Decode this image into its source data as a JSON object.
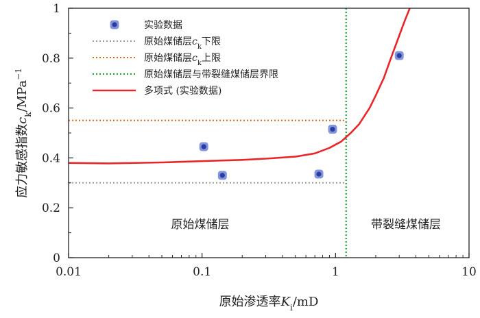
{
  "chart_data": {
    "type": "scatter",
    "x_scale": "log",
    "xlim": [
      0.01,
      10
    ],
    "ylim": [
      0,
      1
    ],
    "x_ticks": [
      {
        "value": 0.01,
        "label": "0.01"
      },
      {
        "value": 0.1,
        "label": "0.1"
      },
      {
        "value": 1,
        "label": "1"
      },
      {
        "value": 10,
        "label": "10"
      }
    ],
    "y_ticks": [
      {
        "value": 0,
        "label": "0"
      },
      {
        "value": 0.2,
        "label": "0.2"
      },
      {
        "value": 0.4,
        "label": "0.4"
      },
      {
        "value": 0.6,
        "label": "0.6"
      },
      {
        "value": 0.8,
        "label": "0.8"
      },
      {
        "value": 1,
        "label": "1"
      }
    ],
    "xlabel": {
      "prefix": "原始渗透率",
      "symbol": "K",
      "subscript": "i",
      "suffix": "/mD"
    },
    "ylabel": {
      "prefix": "应力敏感指数",
      "symbol": "c",
      "subscript": "k",
      "suffix": "/MPa",
      "superscript": "−1"
    },
    "experimental_points": {
      "name": "实验数据",
      "x": [
        0.103,
        0.142,
        0.75,
        0.95,
        3.0
      ],
      "y": [
        0.445,
        0.33,
        0.335,
        0.515,
        0.81
      ]
    },
    "lower_limit": {
      "name_prefix": "原始煤储层",
      "symbol": "c",
      "subscript": "k",
      "name_suffix": "下限",
      "y": 0.3
    },
    "upper_limit": {
      "name_prefix": "原始煤储层",
      "symbol": "c",
      "subscript": "k",
      "name_suffix": "上限",
      "y": 0.55
    },
    "boundary": {
      "name": "原始煤储层与带裂缝煤储层界限",
      "x": 1.2
    },
    "fit_curve": {
      "name": "多项式 (实验数据)",
      "x": [
        0.01,
        0.02,
        0.05,
        0.1,
        0.2,
        0.3,
        0.5,
        0.7,
        0.9,
        1.1,
        1.3,
        1.5,
        1.8,
        2.0,
        2.3,
        2.6,
        3.0,
        3.3,
        3.6
      ],
      "y": [
        0.38,
        0.378,
        0.382,
        0.387,
        0.392,
        0.397,
        0.405,
        0.418,
        0.44,
        0.465,
        0.5,
        0.535,
        0.6,
        0.65,
        0.72,
        0.8,
        0.89,
        0.95,
        1.0
      ]
    },
    "region_labels": [
      "原始煤储层",
      "带裂缝煤储层"
    ],
    "colors": {
      "points": "#6f83d6",
      "points_center": "#2b3d9e",
      "lower_limit": "#9a9a9a",
      "upper_limit": "#d2691e",
      "boundary": "#1fa336",
      "fit_curve": "#e8262a",
      "axis": "#222222"
    }
  }
}
